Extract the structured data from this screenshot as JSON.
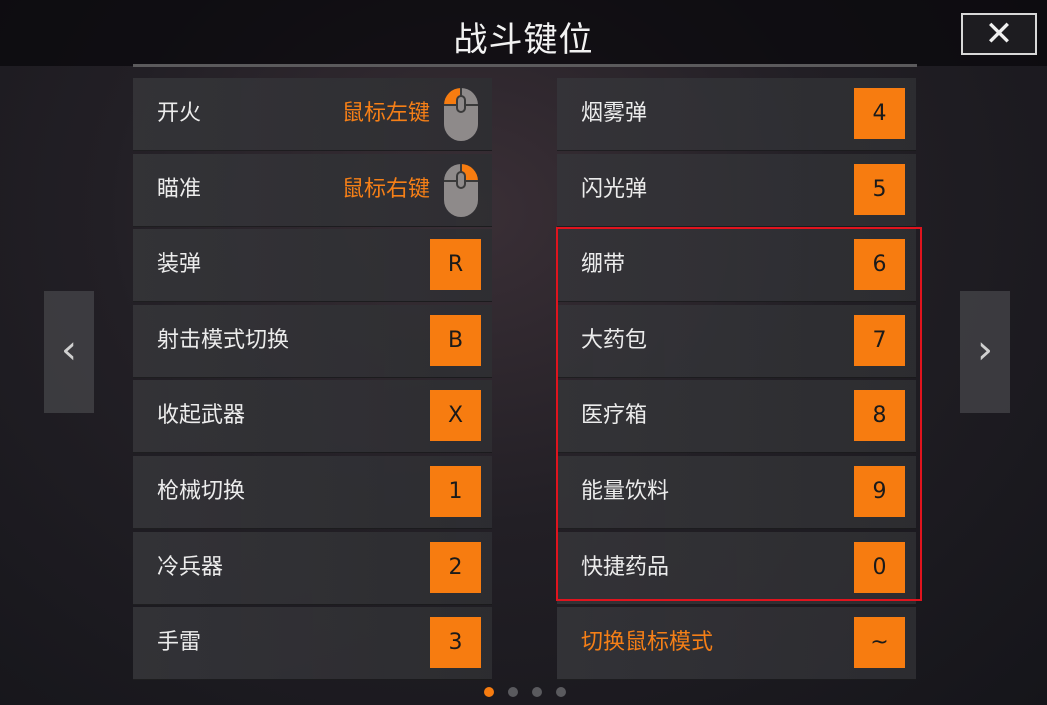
{
  "title": "战斗键位",
  "close_label": "✕",
  "nav": {
    "prev": "‹",
    "next": "›"
  },
  "left_column": [
    {
      "label": "开火",
      "mouse_label": "鼠标左键",
      "mouse_button": "left"
    },
    {
      "label": "瞄准",
      "mouse_label": "鼠标右键",
      "mouse_button": "right"
    },
    {
      "label": "装弹",
      "key": "R"
    },
    {
      "label": "射击模式切换",
      "key": "B"
    },
    {
      "label": "收起武器",
      "key": "X"
    },
    {
      "label": "枪械切换",
      "key": "1"
    },
    {
      "label": "冷兵器",
      "key": "2"
    },
    {
      "label": "手雷",
      "key": "3"
    }
  ],
  "right_column": [
    {
      "label": "烟雾弹",
      "key": "4"
    },
    {
      "label": "闪光弹",
      "key": "5"
    },
    {
      "label": "绷带",
      "key": "6"
    },
    {
      "label": "大药包",
      "key": "7"
    },
    {
      "label": "医疗箱",
      "key": "8"
    },
    {
      "label": "能量饮料",
      "key": "9"
    },
    {
      "label": "快捷药品",
      "key": "0"
    },
    {
      "label": "切换鼠标模式",
      "key": "~",
      "highlight_label": true
    }
  ],
  "pagination": {
    "pages": 4,
    "current": 1
  },
  "colors": {
    "accent": "#f77c10",
    "highlight_box": "#e0141e"
  }
}
